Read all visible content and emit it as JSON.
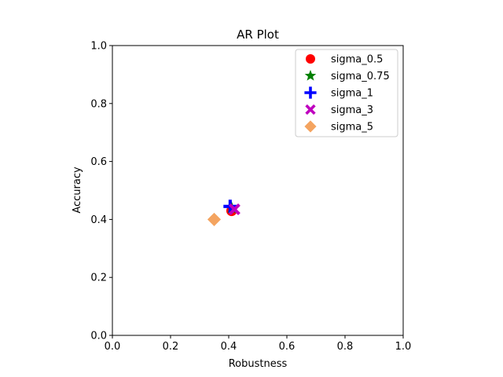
{
  "chart_data": {
    "type": "scatter",
    "title": "AR Plot",
    "xlabel": "Robustness",
    "ylabel": "Accuracy",
    "xlim": [
      0.0,
      1.0
    ],
    "ylim": [
      0.0,
      1.0
    ],
    "xticks": [
      "0.0",
      "0.2",
      "0.4",
      "0.6",
      "0.8",
      "1.0"
    ],
    "yticks": [
      "0.0",
      "0.2",
      "0.4",
      "0.6",
      "0.8",
      "1.0"
    ],
    "grid": false,
    "legend_position": "top-right",
    "series": [
      {
        "name": "sigma_0.5",
        "marker": "circle",
        "color": "#ff0000",
        "x": 0.41,
        "y": 0.43
      },
      {
        "name": "sigma_0.75",
        "marker": "star",
        "color": "#008000",
        "x": 0.41,
        "y": 0.44
      },
      {
        "name": "sigma_1",
        "marker": "plus",
        "color": "#0000ff",
        "x": 0.405,
        "y": 0.445
      },
      {
        "name": "sigma_3",
        "marker": "x",
        "color": "#bf00bf",
        "x": 0.42,
        "y": 0.435
      },
      {
        "name": "sigma_5",
        "marker": "diamond",
        "color": "#f4a460",
        "x": 0.35,
        "y": 0.4
      }
    ]
  }
}
